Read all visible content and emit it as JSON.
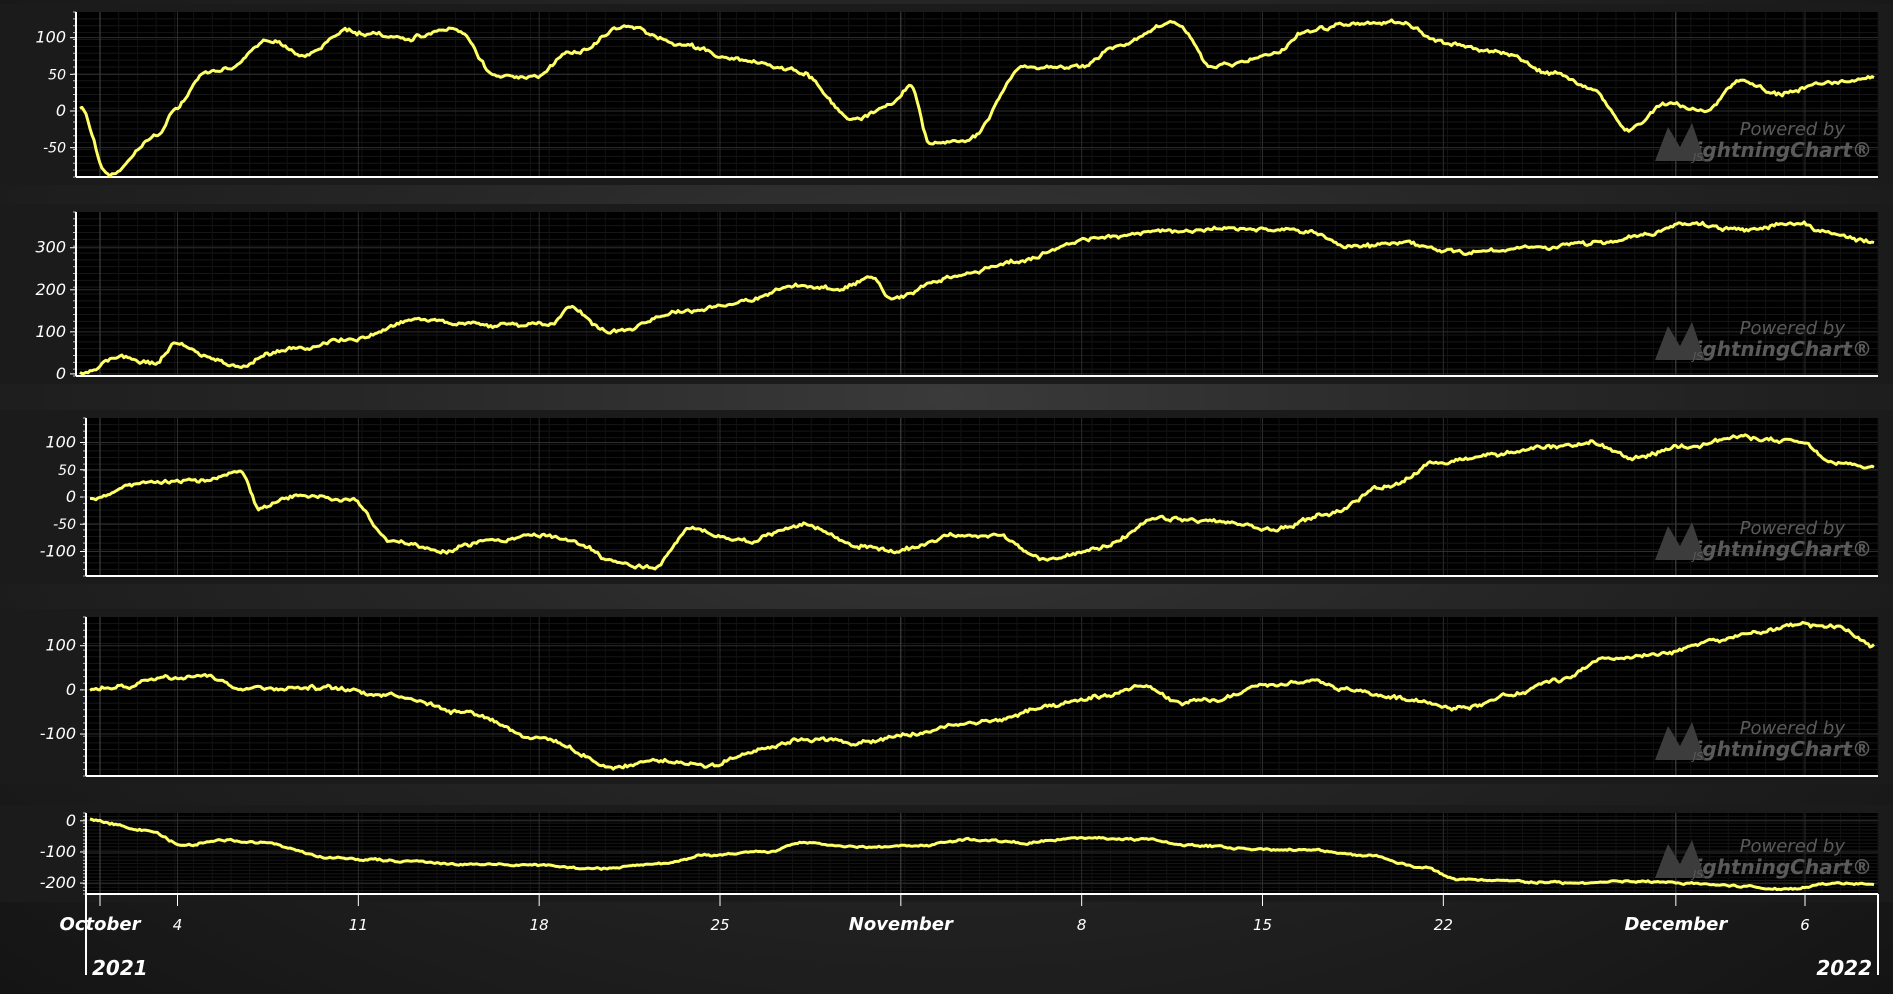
{
  "chart_data": [
    {
      "type": "line",
      "ylim": [
        -90,
        135
      ],
      "yticks": [
        100,
        50,
        0,
        -50
      ],
      "series": [
        {
          "color": "#ffff66",
          "anchors": [
            [
              0,
              5
            ],
            [
              1.5,
              -88
            ],
            [
              4,
              -35
            ],
            [
              5,
              0
            ],
            [
              6.5,
              50
            ],
            [
              8,
              60
            ],
            [
              10,
              95
            ],
            [
              12,
              75
            ],
            [
              14,
              110
            ],
            [
              17,
              100
            ],
            [
              20,
              110
            ],
            [
              22,
              50
            ],
            [
              24,
              45
            ],
            [
              26,
              80
            ],
            [
              29,
              115
            ],
            [
              32,
              90
            ],
            [
              35,
              70
            ],
            [
              38,
              55
            ],
            [
              41,
              -10
            ],
            [
              43,
              10
            ],
            [
              44,
              35
            ],
            [
              45,
              -45
            ],
            [
              47,
              -40
            ],
            [
              50,
              60
            ],
            [
              53,
              60
            ],
            [
              55,
              90
            ],
            [
              58,
              120
            ],
            [
              60,
              60
            ],
            [
              63,
              75
            ],
            [
              65,
              110
            ],
            [
              68,
              120
            ],
            [
              70,
              120
            ],
            [
              72,
              95
            ],
            [
              75,
              80
            ],
            [
              78,
              50
            ],
            [
              80,
              30
            ],
            [
              82,
              -25
            ],
            [
              84,
              10
            ],
            [
              86,
              0
            ],
            [
              88,
              40
            ],
            [
              90,
              25
            ],
            [
              93,
              40
            ],
            [
              95,
              45
            ]
          ]
        }
      ]
    },
    {
      "type": "line",
      "ylim": [
        -5,
        385
      ],
      "yticks": [
        300,
        200,
        100,
        0
      ],
      "series": [
        {
          "color": "#ffff66",
          "anchors": [
            [
              0,
              0
            ],
            [
              2,
              40
            ],
            [
              4,
              25
            ],
            [
              5,
              70
            ],
            [
              7,
              40
            ],
            [
              8.5,
              15
            ],
            [
              10,
              50
            ],
            [
              14,
              80
            ],
            [
              18,
              130
            ],
            [
              22,
              115
            ],
            [
              25,
              120
            ],
            [
              26,
              160
            ],
            [
              28,
              100
            ],
            [
              32,
              150
            ],
            [
              35,
              170
            ],
            [
              38,
              210
            ],
            [
              40,
              200
            ],
            [
              42,
              230
            ],
            [
              43,
              180
            ],
            [
              46,
              230
            ],
            [
              50,
              270
            ],
            [
              53,
              320
            ],
            [
              58,
              340
            ],
            [
              62,
              345
            ],
            [
              65,
              340
            ],
            [
              67,
              300
            ],
            [
              70,
              310
            ],
            [
              73,
              290
            ],
            [
              77,
              300
            ],
            [
              80,
              310
            ],
            [
              83,
              330
            ],
            [
              85,
              360
            ],
            [
              88,
              340
            ],
            [
              91,
              360
            ],
            [
              93,
              330
            ],
            [
              95,
              310
            ]
          ]
        }
      ]
    },
    {
      "type": "line",
      "ylim": [
        -145,
        145
      ],
      "yticks": [
        100,
        50,
        0,
        -50,
        -100
      ],
      "series": [
        {
          "color": "#ffff66",
          "anchors": [
            [
              0,
              0
            ],
            [
              3,
              25
            ],
            [
              6,
              30
            ],
            [
              8,
              50
            ],
            [
              9,
              -20
            ],
            [
              11,
              0
            ],
            [
              14,
              -5
            ],
            [
              16,
              -80
            ],
            [
              19,
              -100
            ],
            [
              21,
              -80
            ],
            [
              24,
              -70
            ],
            [
              26,
              -85
            ],
            [
              28,
              -120
            ],
            [
              30,
              -130
            ],
            [
              32,
              -60
            ],
            [
              35,
              -80
            ],
            [
              38,
              -50
            ],
            [
              41,
              -90
            ],
            [
              43,
              -100
            ],
            [
              46,
              -70
            ],
            [
              48,
              -70
            ],
            [
              51,
              -115
            ],
            [
              54,
              -90
            ],
            [
              57,
              -40
            ],
            [
              60,
              -45
            ],
            [
              63,
              -60
            ],
            [
              66,
              -30
            ],
            [
              69,
              20
            ],
            [
              72,
              65
            ],
            [
              75,
              80
            ],
            [
              78,
              90
            ],
            [
              80,
              100
            ],
            [
              82,
              70
            ],
            [
              85,
              95
            ],
            [
              88,
              110
            ],
            [
              91,
              100
            ],
            [
              93,
              60
            ],
            [
              95,
              55
            ]
          ]
        }
      ]
    },
    {
      "type": "line",
      "ylim": [
        -195,
        165
      ],
      "yticks": [
        100,
        0,
        -100
      ],
      "series": [
        {
          "color": "#ffff66",
          "anchors": [
            [
              0,
              0
            ],
            [
              2,
              10
            ],
            [
              4,
              30
            ],
            [
              6,
              35
            ],
            [
              8,
              5
            ],
            [
              12,
              5
            ],
            [
              16,
              -10
            ],
            [
              20,
              -50
            ],
            [
              24,
              -110
            ],
            [
              28,
              -175
            ],
            [
              30,
              -160
            ],
            [
              33,
              -170
            ],
            [
              36,
              -130
            ],
            [
              38,
              -110
            ],
            [
              41,
              -120
            ],
            [
              44,
              -100
            ],
            [
              46,
              -80
            ],
            [
              48,
              -70
            ],
            [
              51,
              -40
            ],
            [
              54,
              -15
            ],
            [
              56,
              10
            ],
            [
              58,
              -30
            ],
            [
              60,
              -25
            ],
            [
              62,
              5
            ],
            [
              65,
              20
            ],
            [
              67,
              0
            ],
            [
              70,
              -20
            ],
            [
              73,
              -40
            ],
            [
              76,
              -10
            ],
            [
              78,
              20
            ],
            [
              81,
              70
            ],
            [
              84,
              80
            ],
            [
              86,
              110
            ],
            [
              89,
              130
            ],
            [
              91,
              150
            ],
            [
              93,
              140
            ],
            [
              95,
              100
            ]
          ]
        }
      ]
    },
    {
      "type": "line",
      "ylim": [
        -235,
        25
      ],
      "yticks": [
        0,
        -100,
        -200
      ],
      "series": [
        {
          "color": "#ffff66",
          "anchors": [
            [
              0,
              5
            ],
            [
              3,
              -30
            ],
            [
              5,
              -80
            ],
            [
              7,
              -60
            ],
            [
              9,
              -70
            ],
            [
              13,
              -120
            ],
            [
              17,
              -130
            ],
            [
              20,
              -140
            ],
            [
              23,
              -140
            ],
            [
              27,
              -155
            ],
            [
              30,
              -140
            ],
            [
              33,
              -110
            ],
            [
              36,
              -100
            ],
            [
              38,
              -70
            ],
            [
              41,
              -85
            ],
            [
              44,
              -80
            ],
            [
              47,
              -60
            ],
            [
              50,
              -70
            ],
            [
              53,
              -55
            ],
            [
              56,
              -60
            ],
            [
              59,
              -80
            ],
            [
              62,
              -90
            ],
            [
              65,
              -95
            ],
            [
              68,
              -110
            ],
            [
              71,
              -150
            ],
            [
              73,
              -190
            ],
            [
              76,
              -195
            ],
            [
              79,
              -200
            ],
            [
              82,
              -195
            ],
            [
              85,
              -200
            ],
            [
              88,
              -210
            ],
            [
              90,
              -220
            ],
            [
              93,
              -200
            ],
            [
              95,
              -200
            ]
          ]
        }
      ]
    }
  ],
  "x_axis": {
    "ticks": [
      {
        "label": "October",
        "day": 0,
        "major": true
      },
      {
        "label": "4",
        "day": 3,
        "major": false
      },
      {
        "label": "11",
        "day": 10,
        "major": false
      },
      {
        "label": "18",
        "day": 17,
        "major": false
      },
      {
        "label": "25",
        "day": 24,
        "major": false
      },
      {
        "label": "November",
        "day": 31,
        "major": true
      },
      {
        "label": "8",
        "day": 38,
        "major": false
      },
      {
        "label": "15",
        "day": 45,
        "major": false
      },
      {
        "label": "22",
        "day": 52,
        "major": false
      },
      {
        "label": "December",
        "day": 61,
        "major": true
      },
      {
        "label": "6",
        "day": 66,
        "major": false
      }
    ],
    "year_start": "2021",
    "year_end": "2022"
  },
  "watermark": {
    "line1": "Powered by",
    "line2": "LightningChart",
    "mark": "JS"
  },
  "colors": {
    "line": "#ffff66",
    "plot_bg": "#000000",
    "axis": "#ffffff",
    "grid": "#333333"
  }
}
